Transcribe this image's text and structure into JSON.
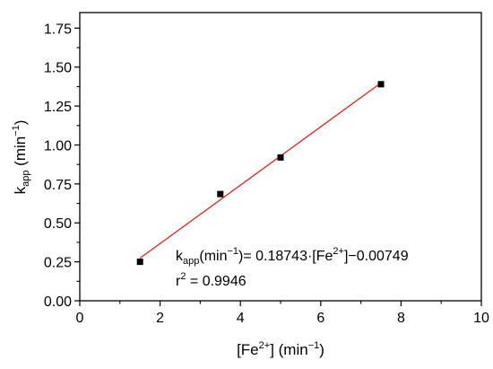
{
  "chart_data": {
    "type": "scatter",
    "x": [
      1.5,
      3.5,
      5.0,
      7.5
    ],
    "y": [
      0.25,
      0.685,
      0.92,
      1.39
    ],
    "fit": {
      "slope": 0.18743,
      "intercept": -0.00749,
      "color": "#e8221c",
      "x_start": 1.5,
      "x_end": 7.5
    },
    "xlim": [
      0,
      10
    ],
    "ylim": [
      0,
      1.85
    ],
    "xticks": [
      0,
      2,
      4,
      6,
      8,
      10
    ],
    "xtick_labels": [
      "0",
      "2",
      "4",
      "6",
      "8",
      "10"
    ],
    "yticks": [
      0.0,
      0.25,
      0.5,
      0.75,
      1.0,
      1.25,
      1.5,
      1.75
    ],
    "ytick_labels": [
      "0.00",
      "0.25",
      "0.50",
      "0.75",
      "1.00",
      "1.25",
      "1.50",
      "1.75"
    ],
    "xlabel": {
      "prefix": "[Fe",
      "sup": "2+",
      "suffix": "] (min",
      "sup2": "−1",
      "end": ")"
    },
    "ylabel": {
      "main": "k",
      "sub": "app",
      "rest": " (min",
      "sup": "−1",
      "end": ")"
    },
    "annotation": {
      "eq_k": "k",
      "eq_sub": "app",
      "eq_a": "(min",
      "eq_sup1": "−1",
      "eq_b": ")= 0.18743·[Fe",
      "eq_sup2": "2+",
      "eq_c": "]−0.00749",
      "r_main": "r",
      "r_sup": "2",
      "r_rest": " = 0.9946"
    },
    "marker_color": "#000000",
    "grid": false
  }
}
